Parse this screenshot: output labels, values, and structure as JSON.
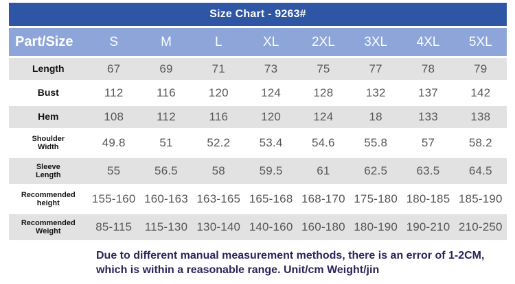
{
  "chart_data": {
    "type": "table",
    "title": "Size Chart - 9263#",
    "corner_label": "Part/Size",
    "columns": [
      "S",
      "M",
      "L",
      "XL",
      "2XL",
      "3XL",
      "4XL",
      "5XL"
    ],
    "rows": [
      {
        "label": "Length",
        "values": [
          "67",
          "69",
          "71",
          "73",
          "75",
          "77",
          "78",
          "79"
        ]
      },
      {
        "label": "Bust",
        "values": [
          "112",
          "116",
          "120",
          "124",
          "128",
          "132",
          "137",
          "142"
        ]
      },
      {
        "label": "Hem",
        "values": [
          "108",
          "112",
          "116",
          "120",
          "124",
          "18",
          "133",
          "138"
        ]
      },
      {
        "label": "Shoulder\nWidth",
        "values": [
          "49.8",
          "51",
          "52.2",
          "53.4",
          "54.6",
          "55.8",
          "57",
          "58.2"
        ]
      },
      {
        "label": "Sleeve\nLength",
        "values": [
          "55",
          "56.5",
          "58",
          "59.5",
          "61",
          "62.5",
          "63.5",
          "64.5"
        ]
      },
      {
        "label": "Recommended\nheight",
        "values": [
          "155-160",
          "160-163",
          "163-165",
          "165-168",
          "168-170",
          "175-180",
          "180-185",
          "185-190"
        ]
      },
      {
        "label": "Recommended\nWeight",
        "values": [
          "85-115",
          "115-130",
          "130-140",
          "140-160",
          "160-180",
          "180-190",
          "190-210",
          "210-250"
        ]
      }
    ],
    "footnote": "Due to different manual measurement methods, there is an error of 1-2CM,\nwhich is within a reasonable range. Unit/cm Weight/jin",
    "layout_hints": {
      "striped_rows": "odd rows gray, even rows white",
      "unit_note": "Unit/cm Weight/jin"
    }
  },
  "colors": {
    "title_bar_bg": "#2e56a5",
    "header_row_bg": "#8ea5da",
    "stripe_row_bg": "#e2e2e2",
    "value_text": "#575757",
    "footnote_text": "#2b2559"
  }
}
